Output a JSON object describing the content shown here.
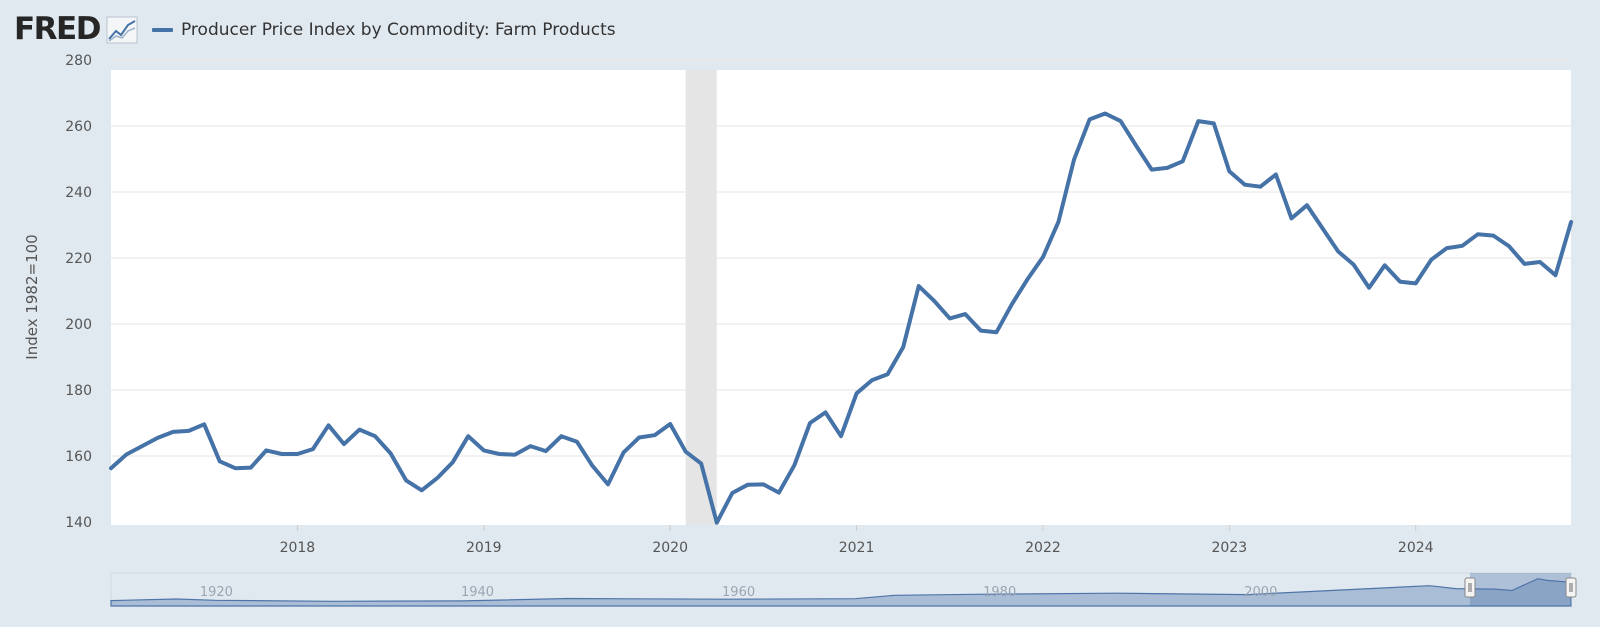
{
  "header": {
    "logo_text": "FRED",
    "legend_label": "Producer Price Index by Commodity: Farm Products"
  },
  "colors": {
    "series": "#4572a7",
    "recession": "#e5e5e5",
    "background": "#e1e9f0",
    "plot": "#ffffff",
    "grid": "#e6e6e6"
  },
  "navigator": {
    "labels": [
      "1920",
      "1940",
      "1960",
      "1980",
      "2000"
    ]
  },
  "chart_data": {
    "type": "line",
    "title": "Producer Price Index by Commodity: Farm Products",
    "xlabel": "",
    "ylabel": "Index 1982=100",
    "ylim": [
      140,
      280
    ],
    "yticks": [
      140,
      160,
      180,
      200,
      220,
      240,
      260,
      280
    ],
    "xlim": [
      2017.0,
      2024.833
    ],
    "xticks": [
      "2018",
      "2019",
      "2020",
      "2021",
      "2022",
      "2023",
      "2024"
    ],
    "grid": true,
    "legend_position": "top-left",
    "recession": {
      "start": 2020.083,
      "end": 2020.25
    },
    "series": [
      {
        "name": "Producer Price Index by Commodity: Farm Products",
        "start": "2017-01",
        "frequency": "monthly",
        "values": [
          156.3,
          160.5,
          163.0,
          165.5,
          167.3,
          167.6,
          169.6,
          158.4,
          156.3,
          156.5,
          161.7,
          160.6,
          160.6,
          162.1,
          169.3,
          163.6,
          168.0,
          166.0,
          160.8,
          152.6,
          149.6,
          153.3,
          158.1,
          166.0,
          161.7,
          160.6,
          160.4,
          163.0,
          161.5,
          166.0,
          164.3,
          157.0,
          151.4,
          161.1,
          165.6,
          166.3,
          169.7,
          161.3,
          157.7,
          139.8,
          148.8,
          151.3,
          151.4,
          148.9,
          157.2,
          170.0,
          173.2,
          166.0,
          179.0,
          183.0,
          184.8,
          193.0,
          211.5,
          207.0,
          201.7,
          203.0,
          198.0,
          197.5,
          206.0,
          213.5,
          220.3,
          231.0,
          249.8,
          262.0,
          263.8,
          261.5,
          254.0,
          246.8,
          247.3,
          249.3,
          261.5,
          260.8,
          246.3,
          242.2,
          241.6,
          245.3,
          232.0,
          236.0,
          229.0,
          222.0,
          218.0,
          211.0,
          217.8,
          212.8,
          212.3,
          219.5,
          223.0,
          223.7,
          227.2,
          226.8,
          223.6,
          218.2,
          218.8,
          214.8,
          230.9
        ]
      }
    ]
  }
}
